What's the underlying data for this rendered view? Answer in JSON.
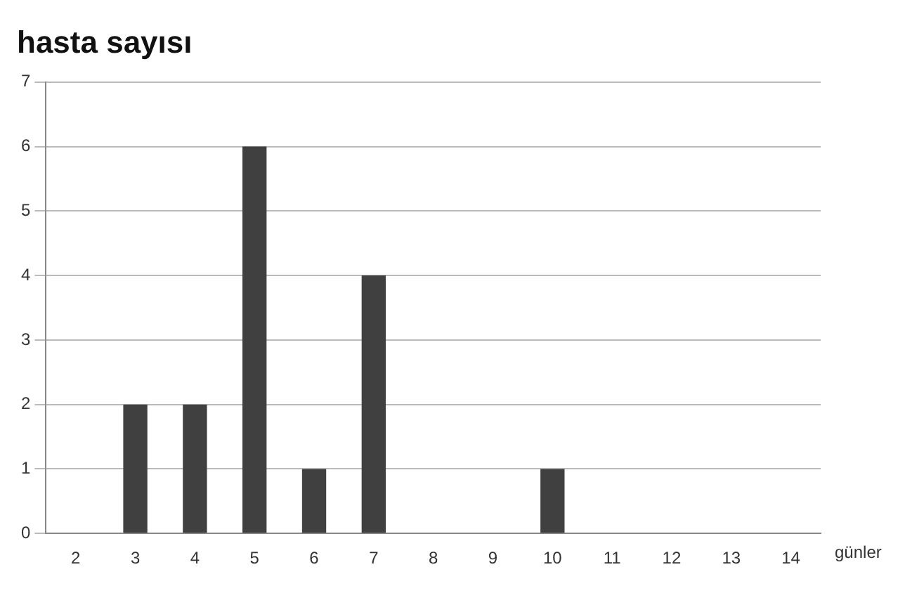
{
  "chart_data": {
    "type": "bar",
    "title": "hasta sayısı",
    "xlabel": "günler",
    "categories": [
      "2",
      "3",
      "4",
      "5",
      "6",
      "7",
      "8",
      "9",
      "10",
      "11",
      "12",
      "13",
      "14"
    ],
    "values": [
      0,
      2,
      2,
      6,
      1,
      4,
      0,
      0,
      1,
      0,
      0,
      0,
      0
    ],
    "color": "#404040",
    "ylim": [
      0,
      7
    ],
    "yticks": [
      0,
      1,
      2,
      3,
      4,
      5,
      6,
      7
    ],
    "grid": "y",
    "legend": false
  }
}
